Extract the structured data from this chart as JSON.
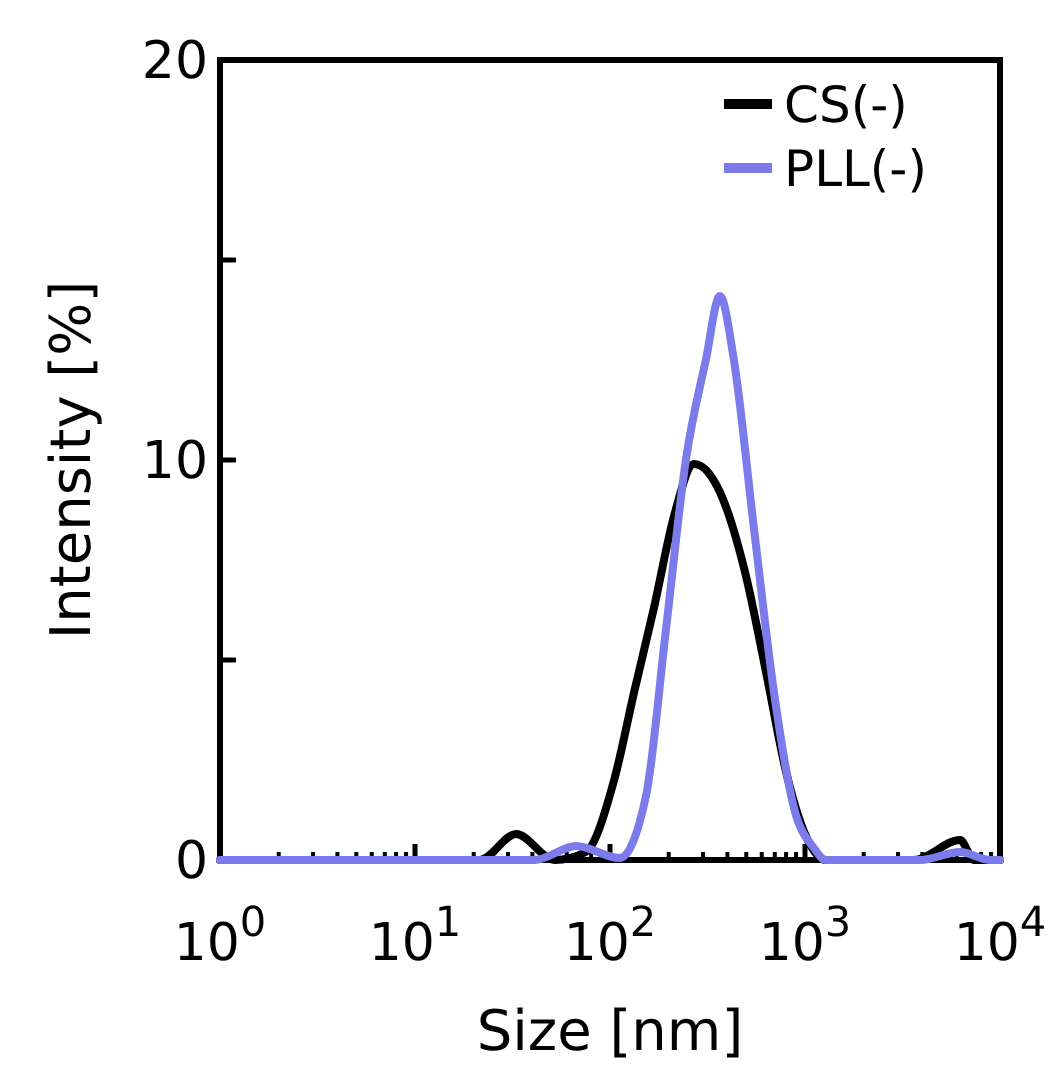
{
  "chart_data": {
    "type": "line",
    "xlabel": "Size [nm]",
    "ylabel": "Intensity [%]",
    "log": "x",
    "xlim": [
      1,
      10000
    ],
    "ylim": [
      0,
      20
    ],
    "xticks": [
      {
        "value": 1,
        "label": "10$^{0}$"
      },
      {
        "value": 10,
        "label": "10$^{1}$"
      },
      {
        "value": 100,
        "label": "10$^{2}$"
      },
      {
        "value": 1000,
        "label": "10$^{3}$"
      },
      {
        "value": 10000,
        "label": "10$^{4}$"
      }
    ],
    "yticks": [
      0,
      {
        "value": 5,
        "label": null
      },
      10,
      {
        "value": 15,
        "label": null
      },
      20
    ],
    "legend": "top right",
    "marker": "none",
    "line_style": "solid",
    "grid": false,
    "series": [
      {
        "name": "CS(-)",
        "color": "#000000",
        "x": [
          1,
          21.5,
          33,
          52,
          75,
          105,
          133,
          168,
          213,
          270,
          366,
          498,
          631,
          800,
          1010,
          1280,
          3620,
          6240,
          7360,
          10000
        ],
        "values": [
          0,
          0,
          0.65,
          0,
          0.2,
          2.0,
          4.2,
          6.3,
          8.6,
          9.9,
          9.2,
          7.1,
          4.7,
          2.2,
          0.6,
          0,
          0,
          0.5,
          0,
          0
        ]
      },
      {
        "name": "PLL(-)",
        "color": "#7b7bec",
        "x": [
          1,
          41,
          67,
          112,
          153,
          194,
          245,
          310,
          366,
          432,
          547,
          693,
          878,
          1110,
          1280,
          3890,
          6240,
          8900,
          10000
        ],
        "values": [
          0,
          0,
          0.35,
          0.05,
          1.6,
          5.8,
          10,
          12.5,
          14.1,
          12.5,
          8.3,
          4.2,
          1.3,
          0.3,
          0,
          0,
          0.2,
          0,
          0
        ]
      }
    ]
  }
}
